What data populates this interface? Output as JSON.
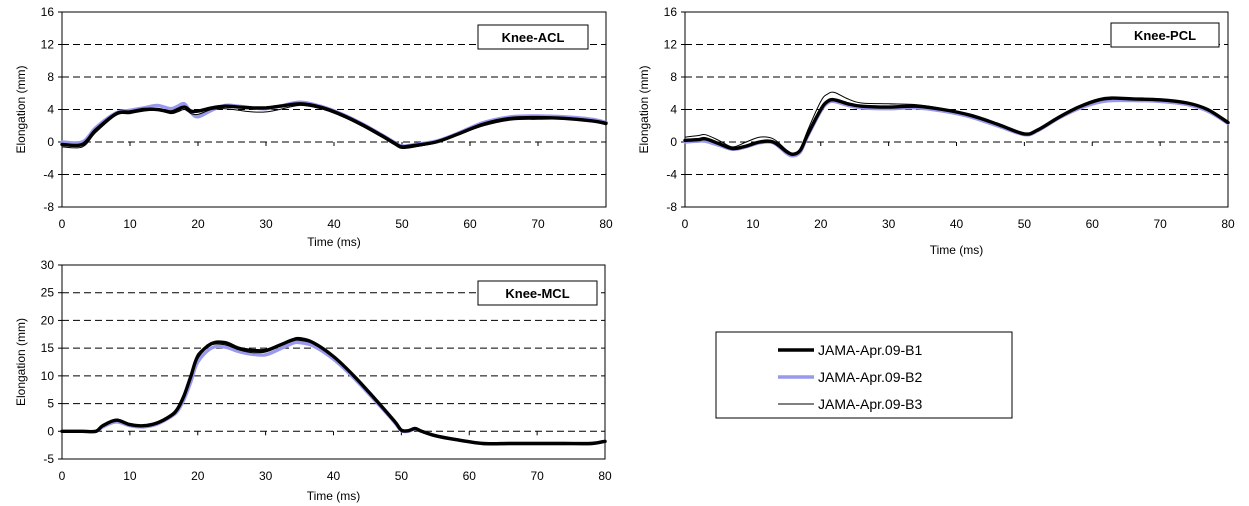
{
  "chart_data": [
    {
      "type": "line",
      "title": "Knee-ACL",
      "xlabel": "Time (ms)",
      "ylabel": "Elongation (mm)",
      "xlim": [
        0,
        80
      ],
      "ylim": [
        -8,
        16
      ],
      "xticks": [
        0,
        10,
        20,
        30,
        40,
        50,
        60,
        70,
        80
      ],
      "yticks": [
        -8,
        -4,
        0,
        4,
        8,
        12,
        16
      ],
      "grid": "horizontal-dashed",
      "series": [
        {
          "name": "JAMA-Apr.09-B1",
          "x": [
            0,
            3,
            5,
            8,
            10,
            12,
            14,
            16,
            17,
            18,
            19,
            20,
            22,
            24,
            26,
            28,
            30,
            32,
            35,
            38,
            41,
            44,
            47,
            49,
            50,
            52,
            55,
            58,
            62,
            66,
            70,
            74,
            78,
            80
          ],
          "y": [
            -0.3,
            -0.3,
            1.5,
            3.5,
            3.7,
            4.0,
            4.0,
            3.7,
            4.0,
            4.3,
            3.8,
            3.8,
            4.2,
            4.4,
            4.3,
            4.2,
            4.2,
            4.4,
            4.7,
            4.3,
            3.4,
            2.2,
            0.8,
            -0.2,
            -0.6,
            -0.4,
            0.0,
            0.9,
            2.2,
            2.9,
            3.0,
            2.9,
            2.6,
            2.3
          ]
        },
        {
          "name": "JAMA-Apr.09-B2",
          "x": [
            0,
            3,
            5,
            8,
            10,
            12,
            14,
            16,
            17,
            18,
            19,
            20,
            22,
            24,
            26,
            28,
            30,
            32,
            35,
            38,
            41,
            44,
            47,
            49,
            50,
            52,
            55,
            58,
            62,
            66,
            70,
            74,
            78,
            80
          ],
          "y": [
            0.0,
            0.0,
            1.8,
            3.6,
            3.9,
            4.2,
            4.5,
            4.1,
            4.4,
            4.7,
            3.6,
            3.1,
            3.9,
            4.5,
            4.4,
            4.2,
            4.1,
            4.4,
            4.9,
            4.4,
            3.5,
            2.3,
            0.9,
            -0.1,
            -0.5,
            -0.3,
            0.1,
            1.0,
            2.4,
            3.1,
            3.2,
            3.1,
            2.8,
            2.4
          ]
        },
        {
          "name": "JAMA-Apr.09-B3",
          "x": [
            0,
            3,
            5,
            8,
            10,
            12,
            14,
            16,
            17,
            18,
            19,
            20,
            22,
            24,
            26,
            28,
            30,
            32,
            35,
            38,
            41,
            44,
            47,
            49,
            50,
            52,
            55,
            58,
            62,
            66,
            70,
            74,
            78,
            80
          ],
          "y": [
            -0.6,
            -0.6,
            1.2,
            3.3,
            3.5,
            3.8,
            3.9,
            3.5,
            3.7,
            4.0,
            3.5,
            3.4,
            4.0,
            4.1,
            3.9,
            3.7,
            3.7,
            4.0,
            4.5,
            4.1,
            3.2,
            2.0,
            0.6,
            -0.4,
            -0.8,
            -0.6,
            -0.1,
            0.8,
            2.0,
            2.7,
            2.8,
            2.8,
            2.5,
            2.1
          ]
        }
      ]
    },
    {
      "type": "line",
      "title": "Knee-PCL",
      "xlabel": "Time (ms)",
      "ylabel": "Elongation (mm)",
      "xlim": [
        0,
        80
      ],
      "ylim": [
        -8,
        16
      ],
      "xticks": [
        0,
        10,
        20,
        30,
        40,
        50,
        60,
        70,
        80
      ],
      "yticks": [
        -8,
        -4,
        0,
        4,
        8,
        12,
        16
      ],
      "grid": "horizontal-dashed",
      "series": [
        {
          "name": "JAMA-Apr.09-B1",
          "x": [
            0,
            2,
            3,
            5,
            7,
            9,
            11,
            13,
            15,
            16,
            17,
            18,
            20,
            21,
            22,
            24,
            26,
            30,
            34,
            38,
            42,
            46,
            50,
            52,
            55,
            58,
            61,
            63,
            66,
            70,
            74,
            77,
            80
          ],
          "y": [
            0.2,
            0.3,
            0.4,
            -0.2,
            -0.8,
            -0.5,
            0.0,
            0.0,
            -1.2,
            -1.5,
            -1.0,
            0.8,
            4.0,
            5.0,
            5.2,
            4.7,
            4.4,
            4.3,
            4.4,
            4.0,
            3.3,
            2.2,
            1.0,
            1.5,
            3.0,
            4.3,
            5.2,
            5.4,
            5.3,
            5.2,
            4.8,
            4.0,
            2.4
          ]
        },
        {
          "name": "JAMA-Apr.09-B2",
          "x": [
            0,
            2,
            3,
            5,
            7,
            9,
            11,
            13,
            15,
            16,
            17,
            18,
            20,
            21,
            22,
            24,
            26,
            30,
            34,
            38,
            42,
            46,
            50,
            52,
            55,
            58,
            61,
            63,
            66,
            70,
            74,
            77,
            80
          ],
          "y": [
            0.0,
            0.1,
            0.1,
            -0.4,
            -0.9,
            -0.6,
            -0.1,
            -0.1,
            -1.4,
            -1.7,
            -1.2,
            0.6,
            3.8,
            4.8,
            5.0,
            4.5,
            4.2,
            4.1,
            4.2,
            3.8,
            3.1,
            2.0,
            0.9,
            1.4,
            2.9,
            4.1,
            4.9,
            5.1,
            5.1,
            5.0,
            4.6,
            3.8,
            2.3
          ]
        },
        {
          "name": "JAMA-Apr.09-B3",
          "x": [
            0,
            2,
            3,
            5,
            7,
            9,
            11,
            13,
            15,
            16,
            17,
            18,
            20,
            21,
            22,
            24,
            26,
            30,
            34,
            38,
            42,
            46,
            50,
            52,
            55,
            58,
            61,
            63,
            66,
            70,
            74,
            77,
            80
          ],
          "y": [
            0.6,
            0.8,
            0.9,
            0.2,
            -0.6,
            0.0,
            0.6,
            0.4,
            -1.0,
            -1.4,
            -0.9,
            1.3,
            5.0,
            5.9,
            6.1,
            5.3,
            4.8,
            4.7,
            4.6,
            4.1,
            3.3,
            2.1,
            0.9,
            1.4,
            2.9,
            4.2,
            5.1,
            5.3,
            5.2,
            5.1,
            4.7,
            3.9,
            2.3
          ]
        }
      ]
    },
    {
      "type": "line",
      "title": "Knee-MCL",
      "xlabel": "Time (ms)",
      "ylabel": "Elongation (mm)",
      "xlim": [
        0,
        80
      ],
      "ylim": [
        -5,
        30
      ],
      "xticks": [
        0,
        10,
        20,
        30,
        40,
        50,
        60,
        70,
        80
      ],
      "yticks": [
        -5,
        0,
        5,
        10,
        15,
        20,
        25,
        30
      ],
      "grid": "horizontal-dashed",
      "series": [
        {
          "name": "JAMA-Apr.09-B1",
          "x": [
            0,
            3,
            5,
            6,
            8,
            10,
            12,
            14,
            16,
            17,
            18,
            19,
            20,
            22,
            24,
            26,
            28,
            30,
            32,
            34,
            35,
            37,
            40,
            43,
            46,
            49,
            50,
            51,
            52,
            53,
            55,
            58,
            62,
            66,
            70,
            74,
            78,
            80
          ],
          "y": [
            0.0,
            0.0,
            0.0,
            1.0,
            2.0,
            1.2,
            1.0,
            1.5,
            2.8,
            4.0,
            6.5,
            10.0,
            13.5,
            15.8,
            16.0,
            15.0,
            14.6,
            14.6,
            15.5,
            16.5,
            16.7,
            16.0,
            13.5,
            10.0,
            6.0,
            1.8,
            0.2,
            0.1,
            0.5,
            0.0,
            -0.8,
            -1.5,
            -2.2,
            -2.2,
            -2.2,
            -2.2,
            -2.2,
            -1.8
          ]
        },
        {
          "name": "JAMA-Apr.09-B2",
          "x": [
            0,
            3,
            5,
            6,
            8,
            10,
            12,
            14,
            16,
            17,
            18,
            19,
            20,
            22,
            24,
            26,
            28,
            30,
            32,
            34,
            35,
            37,
            40,
            43,
            46,
            49,
            50,
            51,
            52,
            53,
            55,
            58,
            62,
            66,
            70,
            74,
            78,
            80
          ],
          "y": [
            0.0,
            0.0,
            0.0,
            0.8,
            1.7,
            1.0,
            0.8,
            1.3,
            2.6,
            3.6,
            5.8,
            9.0,
            12.5,
            15.0,
            15.2,
            14.4,
            13.9,
            13.8,
            14.8,
            15.9,
            16.0,
            15.4,
            13.0,
            9.6,
            5.7,
            1.6,
            0.1,
            0.0,
            0.4,
            0.0,
            -0.8,
            -1.5,
            -2.2,
            -2.2,
            -2.2,
            -2.2,
            -2.2,
            -1.8
          ]
        },
        {
          "name": "JAMA-Apr.09-B3",
          "x": [
            0,
            3,
            5,
            6,
            8,
            10,
            12,
            14,
            16,
            17,
            18,
            19,
            20,
            22,
            24,
            26,
            28,
            30,
            32,
            34,
            35,
            37,
            40,
            43,
            46,
            49,
            50,
            51,
            52,
            53,
            55,
            58,
            62,
            66,
            70,
            74,
            78,
            80
          ],
          "y": [
            0.0,
            0.0,
            0.1,
            1.1,
            2.2,
            1.4,
            1.1,
            1.6,
            3.0,
            4.3,
            6.9,
            10.5,
            14.0,
            15.6,
            15.6,
            14.7,
            14.2,
            14.3,
            15.3,
            16.3,
            16.4,
            15.8,
            13.3,
            9.8,
            5.9,
            1.7,
            0.2,
            0.1,
            0.6,
            0.0,
            -0.8,
            -1.5,
            -2.2,
            -2.2,
            -2.2,
            -2.2,
            -2.2,
            -1.8
          ]
        }
      ]
    }
  ],
  "legend": {
    "items": [
      {
        "label": "JAMA-Apr.09-B1",
        "color": "#000000",
        "style": "thick-black"
      },
      {
        "label": "JAMA-Apr.09-B2",
        "color": "#9999ee",
        "style": "thick-lavender"
      },
      {
        "label": "JAMA-Apr.09-B3",
        "color": "#000000",
        "style": "thin-black"
      }
    ]
  }
}
